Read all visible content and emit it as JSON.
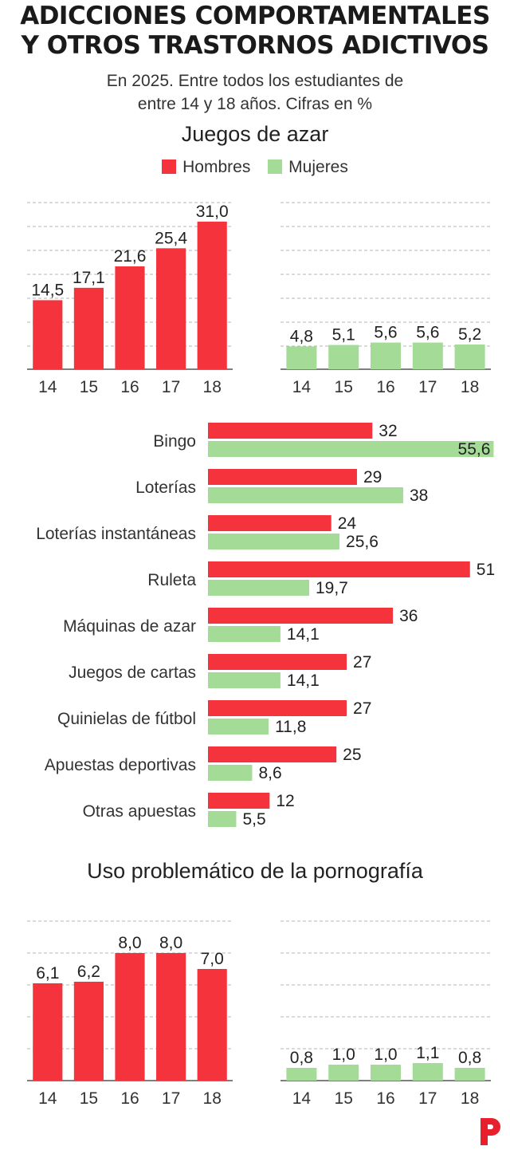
{
  "title_line1": "ADICCIONES COMPORTAMENTALES",
  "title_line2": "Y OTROS TRASTORNOS ADICTIVOS",
  "subtitle_line1": "En 2025. Entre todos los estudiantes de",
  "subtitle_line2": "entre 14 y 18 años. Cifras en %",
  "colors": {
    "hombres": "#F4333C",
    "mujeres": "#A3DB97",
    "grid": "#b5b5b5",
    "axis": "#333333",
    "logo": "#E8202D"
  },
  "legend": {
    "hombres": "Hombres",
    "mujeres": "Mujeres"
  },
  "logo_icon": "p-logo-icon",
  "chart_data": [
    {
      "id": "juegos-hombres",
      "type": "bar",
      "section_title": "Juegos de azar",
      "series_name": "Hombres",
      "categories": [
        "14",
        "15",
        "16",
        "17",
        "18"
      ],
      "values": [
        14.5,
        17.1,
        21.6,
        25.4,
        31.0
      ],
      "labels": [
        "14,5",
        "17,1",
        "21,6",
        "25,4",
        "31,0"
      ],
      "ylim": [
        0,
        35
      ]
    },
    {
      "id": "juegos-mujeres",
      "type": "bar",
      "section_title": "Juegos de azar",
      "series_name": "Mujeres",
      "categories": [
        "14",
        "15",
        "16",
        "17",
        "18"
      ],
      "values": [
        4.8,
        5.1,
        5.6,
        5.6,
        5.2
      ],
      "labels": [
        "4,8",
        "5,1",
        "5,6",
        "5,6",
        "5,2"
      ],
      "ylim": [
        0,
        35
      ]
    },
    {
      "id": "juegos-tipos",
      "type": "bar",
      "orientation": "horizontal",
      "categories": [
        "Bingo",
        "Loterías",
        "Loterías instantáneas",
        "Ruleta",
        "Máquinas de azar",
        "Juegos de cartas",
        "Quinielas de fútbol",
        "Apuestas deportivas",
        "Otras apuestas"
      ],
      "series": [
        {
          "name": "Hombres",
          "values": [
            32,
            29,
            24,
            51,
            36,
            27,
            27,
            25,
            12
          ],
          "labels": [
            "32",
            "29",
            "24",
            "51",
            "36",
            "27",
            "27",
            "25",
            "12"
          ]
        },
        {
          "name": "Mujeres",
          "values": [
            55.6,
            38,
            25.6,
            19.7,
            14.1,
            14.1,
            11.8,
            8.6,
            5.5
          ],
          "labels": [
            "55,6",
            "38",
            "25,6",
            "19,7",
            "14,1",
            "14,1",
            "11,8",
            "8,6",
            "5,5"
          ]
        }
      ],
      "xlim": [
        0,
        56
      ]
    },
    {
      "id": "porno-hombres",
      "type": "bar",
      "section_title": "Uso problemático de la pornografía",
      "series_name": "Hombres",
      "categories": [
        "14",
        "15",
        "16",
        "17",
        "18"
      ],
      "values": [
        6.1,
        6.2,
        8.0,
        8.0,
        7.0
      ],
      "labels": [
        "6,1",
        "6,2",
        "8,0",
        "8,0",
        "7,0"
      ],
      "ylim": [
        0,
        10
      ]
    },
    {
      "id": "porno-mujeres",
      "type": "bar",
      "section_title": "Uso problemático de la pornografía",
      "series_name": "Mujeres",
      "categories": [
        "14",
        "15",
        "16",
        "17",
        "18"
      ],
      "values": [
        0.8,
        1.0,
        1.0,
        1.1,
        0.8
      ],
      "labels": [
        "0,8",
        "1,0",
        "1,0",
        "1,1",
        "0,8"
      ],
      "ylim": [
        0,
        10
      ]
    }
  ]
}
